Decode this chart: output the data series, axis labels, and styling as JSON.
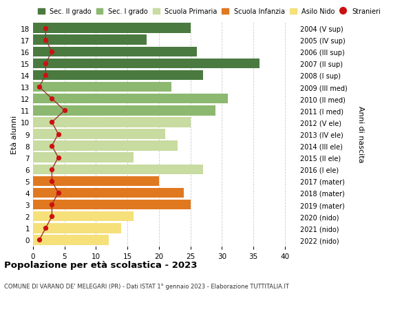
{
  "ages": [
    0,
    1,
    2,
    3,
    4,
    5,
    6,
    7,
    8,
    9,
    10,
    11,
    12,
    13,
    14,
    15,
    16,
    17,
    18
  ],
  "bar_values": [
    12,
    14,
    16,
    25,
    24,
    20,
    27,
    16,
    23,
    21,
    25,
    29,
    31,
    22,
    27,
    36,
    26,
    18,
    25
  ],
  "right_labels": [
    "2022 (nido)",
    "2021 (nido)",
    "2020 (nido)",
    "2019 (mater)",
    "2018 (mater)",
    "2017 (mater)",
    "2016 (I ele)",
    "2015 (II ele)",
    "2014 (III ele)",
    "2013 (IV ele)",
    "2012 (V ele)",
    "2011 (I med)",
    "2010 (II med)",
    "2009 (III med)",
    "2008 (I sup)",
    "2007 (II sup)",
    "2006 (III sup)",
    "2005 (IV sup)",
    "2004 (V sup)"
  ],
  "bar_colors": [
    "#f5e07a",
    "#f5e07a",
    "#f5e07a",
    "#e07820",
    "#e07820",
    "#e07820",
    "#c8dba0",
    "#c8dba0",
    "#c8dba0",
    "#c8dba0",
    "#c8dba0",
    "#8cb870",
    "#8cb870",
    "#8cb870",
    "#4a7a40",
    "#4a7a40",
    "#4a7a40",
    "#4a7a40",
    "#4a7a40"
  ],
  "stranieri_values": [
    1,
    2,
    3,
    3,
    4,
    3,
    3,
    4,
    3,
    4,
    3,
    5,
    3,
    1,
    2,
    2,
    3,
    2,
    2
  ],
  "legend_labels": [
    "Sec. II grado",
    "Sec. I grado",
    "Scuola Primaria",
    "Scuola Infanzia",
    "Asilo Nido",
    "Stranieri"
  ],
  "legend_colors": [
    "#4a7a40",
    "#8cb870",
    "#c8dba0",
    "#e07820",
    "#f5e07a",
    "#cc1111"
  ],
  "ylabel_left": "Età alunni",
  "ylabel_right": "Anni di nascita",
  "title": "Popolazione per età scolastica - 2023",
  "subtitle": "COMUNE DI VARANO DE' MELEGARI (PR) - Dati ISTAT 1° gennaio 2023 - Elaborazione TUTTITALIA.IT",
  "xlim": [
    0,
    42
  ],
  "bg_color": "#ffffff",
  "grid_color": "#cccccc",
  "stranieri_line_color": "#993333",
  "stranieri_dot_color": "#cc1111"
}
